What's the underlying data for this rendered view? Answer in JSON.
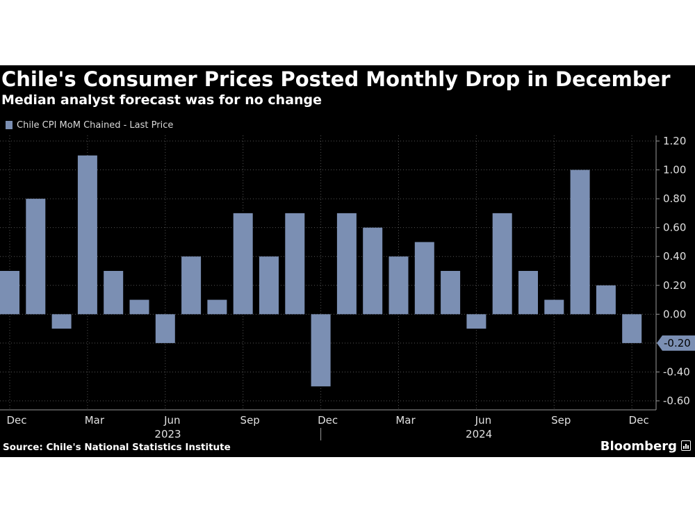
{
  "chart_data": {
    "type": "bar",
    "title": "Chile's Consumer Prices Posted Monthly Drop in December",
    "subtitle": "Median analyst forecast was for no change",
    "legend": "Chile CPI MoM Chained - Last Price",
    "categories": [
      "Dec 2022",
      "Jan 2023",
      "Feb 2023",
      "Mar 2023",
      "Apr 2023",
      "May 2023",
      "Jun 2023",
      "Jul 2023",
      "Aug 2023",
      "Sep 2023",
      "Oct 2023",
      "Nov 2023",
      "Dec 2023",
      "Jan 2024",
      "Feb 2024",
      "Mar 2024",
      "Apr 2024",
      "May 2024",
      "Jun 2024",
      "Jul 2024",
      "Aug 2024",
      "Sep 2024",
      "Oct 2024",
      "Nov 2024",
      "Dec 2024"
    ],
    "values": [
      0.3,
      0.8,
      -0.1,
      1.1,
      0.3,
      0.1,
      -0.2,
      0.4,
      0.1,
      0.7,
      0.4,
      0.7,
      -0.5,
      0.7,
      0.6,
      0.4,
      0.5,
      0.3,
      -0.1,
      0.7,
      0.3,
      0.1,
      1.0,
      0.2,
      -0.2
    ],
    "x_tick_labels": [
      "Dec",
      "Mar",
      "Jun",
      "Sep",
      "Dec",
      "Mar",
      "Jun",
      "Sep",
      "Dec"
    ],
    "x_year_labels": [
      "2023",
      "2024"
    ],
    "y_tick_labels": [
      "1.20",
      "1.00",
      "0.80",
      "0.60",
      "0.40",
      "0.20",
      "0.00",
      "-0.20",
      "-0.40",
      "-0.60"
    ],
    "y_ticks": [
      1.2,
      1.0,
      0.8,
      0.6,
      0.4,
      0.2,
      0.0,
      -0.2,
      -0.4,
      -0.6
    ],
    "ylim": [
      -0.6,
      1.2
    ],
    "last_value_label": "-0.20",
    "grid": true,
    "legend_position": "top-left",
    "y_axis_position": "right",
    "bar_color": "#7b8fb3",
    "background_color": "#000000"
  },
  "footer": {
    "source": "Source: Chile's National Statistics Institute",
    "brand": "Bloomberg"
  }
}
